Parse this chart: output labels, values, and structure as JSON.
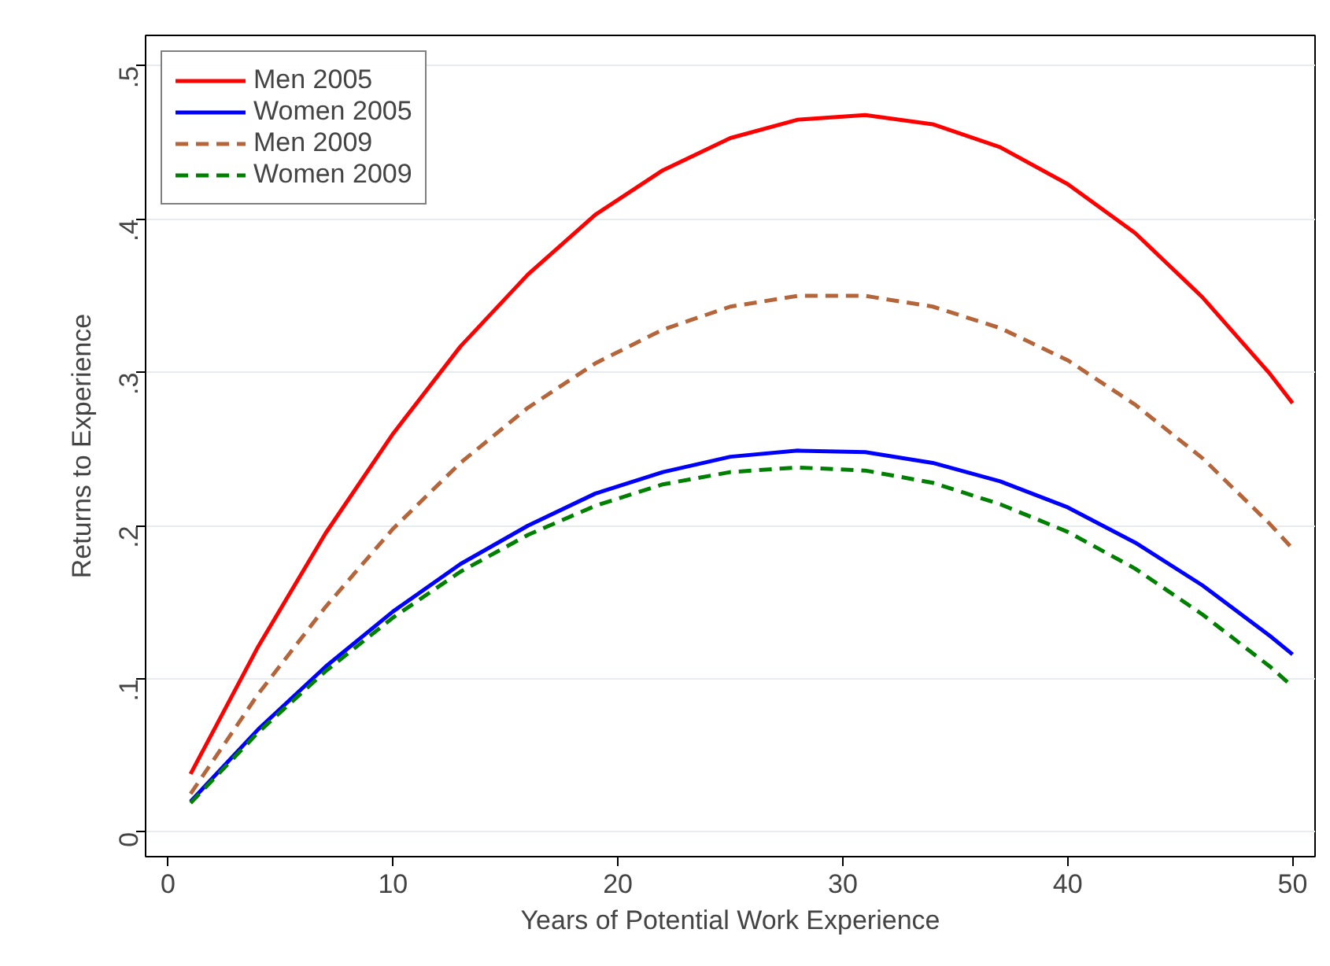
{
  "chart_data": {
    "type": "line",
    "xlabel": "Years of Potential Work Experience",
    "ylabel": "Returns to Experience",
    "x": [
      1,
      4,
      7,
      10,
      13,
      16,
      19,
      22,
      25,
      28,
      31,
      34,
      37,
      40,
      43,
      46,
      49,
      50
    ],
    "series": [
      {
        "name": "Men 2005",
        "color": "#ff0000",
        "line_style": "solid",
        "values": [
          0.038,
          0.121,
          0.195,
          0.26,
          0.317,
          0.364,
          0.403,
          0.432,
          0.453,
          0.465,
          0.468,
          0.462,
          0.447,
          0.423,
          0.391,
          0.349,
          0.299,
          0.28
        ]
      },
      {
        "name": "Women 2005",
        "color": "#0000ff",
        "line_style": "solid",
        "values": [
          0.02,
          0.067,
          0.108,
          0.144,
          0.175,
          0.2,
          0.221,
          0.235,
          0.245,
          0.249,
          0.248,
          0.241,
          0.229,
          0.212,
          0.189,
          0.161,
          0.128,
          0.116
        ]
      },
      {
        "name": "Men 2009",
        "color": "#b5653a",
        "line_style": "dashed",
        "values": [
          0.025,
          0.09,
          0.147,
          0.198,
          0.241,
          0.277,
          0.306,
          0.328,
          0.343,
          0.35,
          0.35,
          0.343,
          0.329,
          0.308,
          0.279,
          0.244,
          0.201,
          0.185
        ]
      },
      {
        "name": "Women 2009",
        "color": "#008000",
        "line_style": "dashed",
        "values": [
          0.019,
          0.065,
          0.105,
          0.14,
          0.17,
          0.194,
          0.213,
          0.227,
          0.235,
          0.238,
          0.236,
          0.228,
          0.214,
          0.196,
          0.172,
          0.142,
          0.108,
          0.095
        ]
      }
    ],
    "xlim": [
      -1,
      51
    ],
    "ylim": [
      -0.016,
      0.52
    ],
    "xticks": [
      0,
      10,
      20,
      30,
      40,
      50
    ],
    "yticks": [
      {
        "value": 0,
        "label": "0"
      },
      {
        "value": 0.1,
        "label": ".1"
      },
      {
        "value": 0.2,
        "label": ".2"
      },
      {
        "value": 0.3,
        "label": ".3"
      },
      {
        "value": 0.4,
        "label": ".4"
      },
      {
        "value": 0.5,
        "label": ".5"
      }
    ],
    "grid": "y",
    "legend": "top left",
    "marker": "none"
  }
}
